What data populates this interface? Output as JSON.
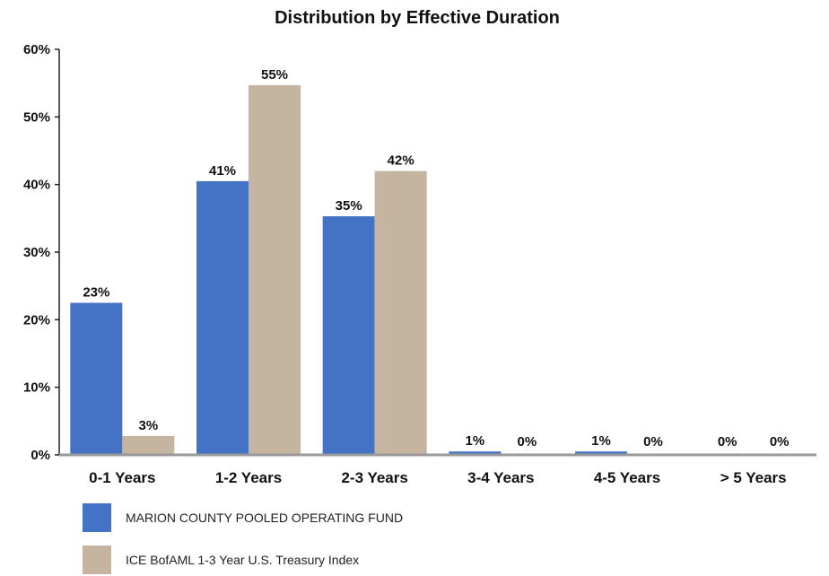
{
  "chart_data": {
    "type": "bar",
    "title": "Distribution by Effective Duration",
    "xlabel": "",
    "ylabel": "",
    "ylim": [
      0,
      60
    ],
    "y_ticks": [
      "0%",
      "10%",
      "20%",
      "30%",
      "40%",
      "50%",
      "60%"
    ],
    "categories": [
      "0-1 Years",
      "1-2 Years",
      "2-3 Years",
      "3-4 Years",
      "4-5 Years",
      "> 5 Years"
    ],
    "series": [
      {
        "name": "MARION COUNTY POOLED OPERATING FUND",
        "color": "#4472C4",
        "values": [
          22.5,
          40.5,
          35.3,
          0.5,
          0.5,
          0
        ],
        "labels": [
          "23%",
          "41%",
          "35%",
          "1%",
          "1%",
          "0%"
        ]
      },
      {
        "name": "ICE BofAML 1-3 Year U.S. Treasury Index",
        "color": "#C4B4A0",
        "values": [
          2.8,
          54.7,
          42.0,
          0,
          0,
          0
        ],
        "labels": [
          "3%",
          "55%",
          "42%",
          "0%",
          "0%",
          "0%"
        ]
      }
    ],
    "grid": false,
    "legend_position": "bottom-left"
  }
}
